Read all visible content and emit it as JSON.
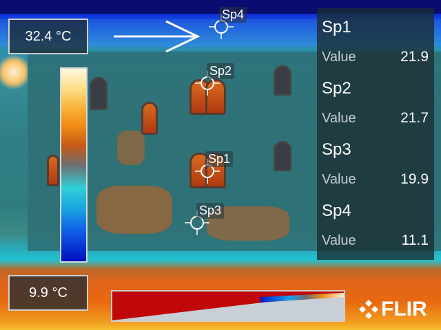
{
  "camera": {
    "temp_max": "32.4 °C",
    "temp_min": "9.9 °C",
    "brand": "FLIR"
  },
  "spots": [
    {
      "id": "Sp1",
      "label": "Sp1",
      "value_label": "Value",
      "value": "21.9"
    },
    {
      "id": "Sp2",
      "label": "Sp2",
      "value_label": "Value",
      "value": "21.7"
    },
    {
      "id": "Sp3",
      "label": "Sp3",
      "value_label": "Value",
      "value": "19.9"
    },
    {
      "id": "Sp4",
      "label": "Sp4",
      "value_label": "Value",
      "value": "11.1"
    }
  ],
  "palette": {
    "accent": "#ffffff",
    "panel_bg": "#1f3a40",
    "hot": "#f08a14",
    "cold": "#0010c0"
  },
  "icons": {
    "pointer_arrow": "arrow-right-icon",
    "spot_marker": "crosshair-icon",
    "logo": "flir-logo-icon"
  }
}
